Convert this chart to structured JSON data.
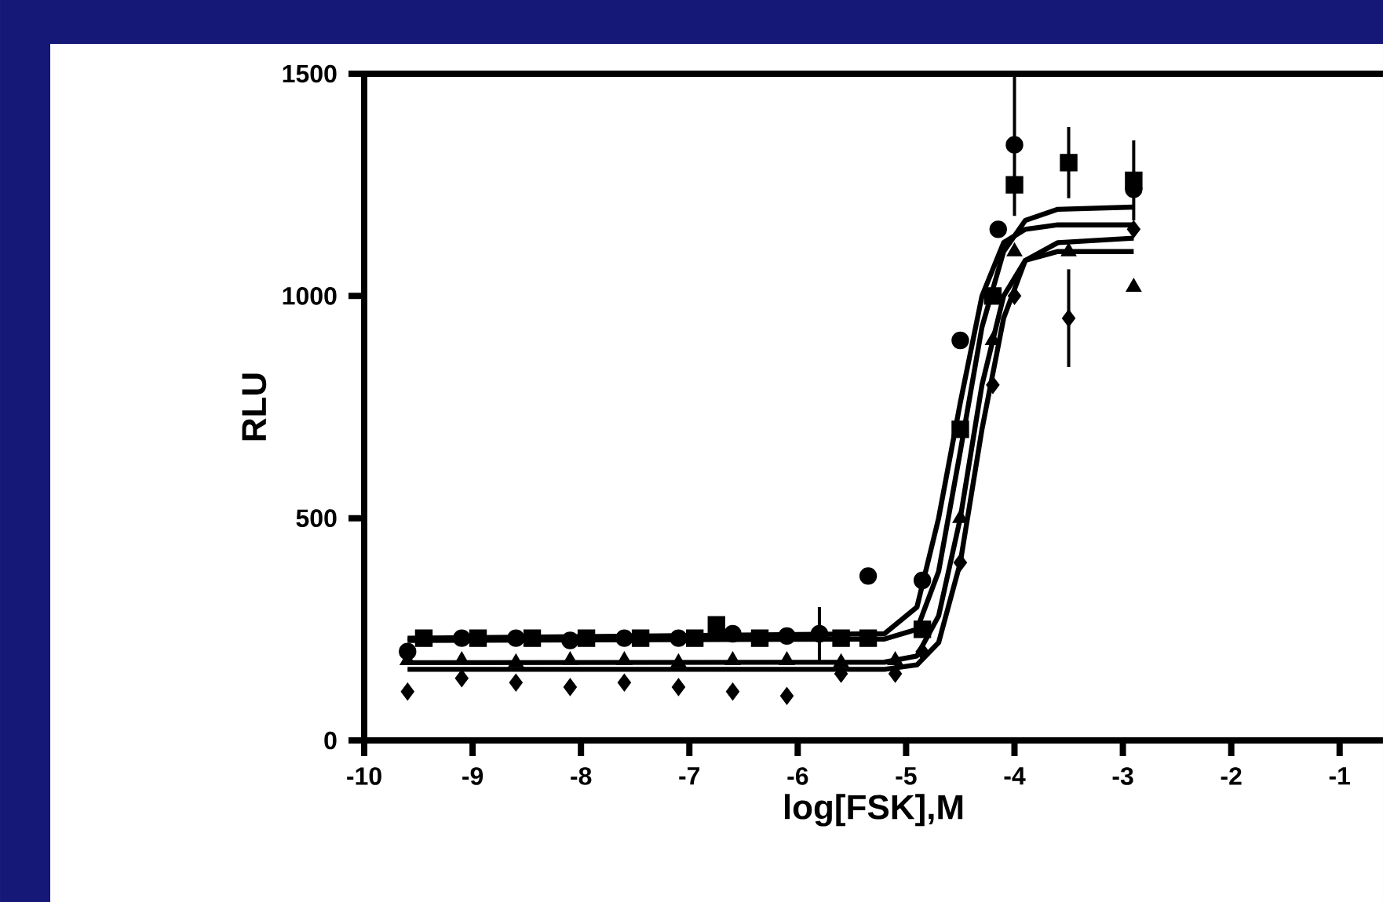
{
  "chart_data": {
    "type": "scatter",
    "xlabel": "log[FSK],M",
    "ylabel": "RLU",
    "xlim": [
      -10,
      -0.6
    ],
    "ylim": [
      0,
      1500
    ],
    "xticks": [
      -10,
      -9,
      -8,
      -7,
      -6,
      -5,
      -4,
      -3,
      -2,
      -1
    ],
    "yticks": [
      0,
      500,
      1000,
      1500
    ],
    "series": [
      {
        "type": "scatter",
        "color": "#000000",
        "marker": "circle",
        "x": [
          -9.6,
          -9.1,
          -8.6,
          -8.1,
          -7.6,
          -7.1,
          -6.6,
          -6.1,
          -5.8,
          -5.35,
          -4.85,
          -4.5,
          -4.15,
          -4.0,
          -3.5,
          -2.9
        ],
        "values": [
          200,
          230,
          230,
          225,
          230,
          230,
          240,
          235,
          240,
          370,
          360,
          900,
          1150,
          1340,
          null,
          1240
        ],
        "errors": [
          null,
          null,
          null,
          null,
          null,
          null,
          null,
          null,
          60,
          null,
          null,
          null,
          null,
          160,
          null,
          null
        ]
      },
      {
        "type": "scatter",
        "color": "#000000",
        "marker": "square",
        "x": [
          -9.45,
          -8.95,
          -8.45,
          -7.95,
          -7.45,
          -6.95,
          -6.75,
          -6.35,
          -5.6,
          -5.35,
          -4.85,
          -4.5,
          -4.2,
          -4.0,
          -3.5,
          -2.9
        ],
        "values": [
          230,
          230,
          230,
          230,
          230,
          230,
          260,
          230,
          230,
          230,
          250,
          700,
          1000,
          1250,
          1300,
          1260
        ],
        "errors": [
          null,
          null,
          null,
          null,
          null,
          null,
          null,
          null,
          null,
          null,
          null,
          null,
          null,
          null,
          80,
          90
        ]
      },
      {
        "type": "scatter",
        "color": "#000000",
        "marker": "triangle",
        "x": [
          -9.6,
          -9.1,
          -8.6,
          -8.1,
          -7.6,
          -7.1,
          -6.6,
          -6.1,
          -5.6,
          -5.1,
          -4.85,
          -4.5,
          -4.2,
          -4.0,
          -3.5,
          -2.9
        ],
        "values": [
          180,
          180,
          175,
          180,
          180,
          175,
          180,
          180,
          175,
          180,
          null,
          500,
          900,
          1100,
          1100,
          1020
        ],
        "errors": [
          null,
          null,
          null,
          null,
          null,
          null,
          null,
          null,
          null,
          null,
          null,
          null,
          null,
          null,
          null,
          null
        ]
      },
      {
        "type": "scatter",
        "color": "#000000",
        "marker": "diamond",
        "x": [
          -9.6,
          -9.1,
          -8.6,
          -8.1,
          -7.6,
          -7.1,
          -6.6,
          -6.1,
          -5.6,
          -5.1,
          -4.85,
          -4.5,
          -4.2,
          -4.0,
          -3.5,
          -2.9
        ],
        "values": [
          110,
          140,
          130,
          120,
          130,
          120,
          110,
          100,
          150,
          150,
          200,
          400,
          800,
          1000,
          950,
          1150
        ],
        "errors": [
          null,
          null,
          null,
          null,
          null,
          null,
          null,
          null,
          null,
          null,
          null,
          null,
          null,
          null,
          110,
          null
        ]
      },
      {
        "type": "line",
        "color": "#000000",
        "marker": "none",
        "line_style": "solid",
        "x": [
          -9.6,
          -5.2,
          -4.9,
          -4.7,
          -4.5,
          -4.3,
          -4.1,
          -3.9,
          -3.6,
          -2.9
        ],
        "values": [
          230,
          240,
          300,
          500,
          760,
          1000,
          1120,
          1150,
          1160,
          1160
        ]
      },
      {
        "type": "line",
        "color": "#000000",
        "marker": "none",
        "line_style": "solid",
        "x": [
          -9.6,
          -5.2,
          -4.9,
          -4.7,
          -4.5,
          -4.3,
          -4.1,
          -3.9,
          -3.6,
          -2.9
        ],
        "values": [
          225,
          228,
          250,
          380,
          650,
          930,
          1100,
          1170,
          1195,
          1200
        ]
      },
      {
        "type": "line",
        "color": "#000000",
        "marker": "none",
        "line_style": "solid",
        "x": [
          -9.6,
          -5.2,
          -4.9,
          -4.7,
          -4.5,
          -4.3,
          -4.1,
          -3.9,
          -3.6,
          -2.9
        ],
        "values": [
          175,
          176,
          190,
          280,
          500,
          800,
          1000,
          1080,
          1100,
          1100
        ]
      },
      {
        "type": "line",
        "color": "#000000",
        "marker": "none",
        "line_style": "solid",
        "x": [
          -9.6,
          -5.2,
          -4.9,
          -4.7,
          -4.5,
          -4.3,
          -4.1,
          -3.9,
          -3.6,
          -2.9
        ],
        "values": [
          160,
          160,
          170,
          220,
          400,
          700,
          950,
          1080,
          1120,
          1130
        ]
      }
    ]
  }
}
